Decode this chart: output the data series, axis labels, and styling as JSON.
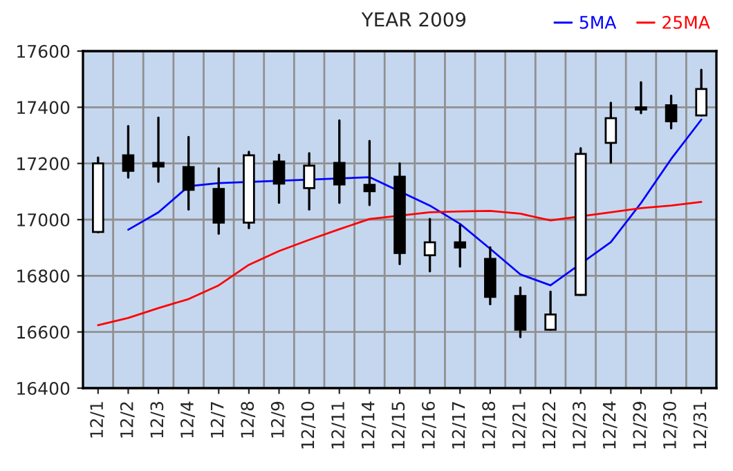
{
  "chart_data": {
    "type": "candlestick",
    "title": "YEAR 2009",
    "categories": [
      "12/1",
      "12/2",
      "12/3",
      "12/4",
      "12/7",
      "12/8",
      "12/9",
      "12/10",
      "12/11",
      "12/14",
      "12/15",
      "12/16",
      "12/17",
      "12/18",
      "12/21",
      "12/22",
      "12/23",
      "12/24",
      "12/29",
      "12/30",
      "12/31"
    ],
    "ohlc": [
      [
        16956,
        17221,
        16955,
        17200
      ],
      [
        17229,
        17333,
        17150,
        17174
      ],
      [
        17202,
        17363,
        17135,
        17189
      ],
      [
        17187,
        17294,
        17036,
        17106
      ],
      [
        17109,
        17182,
        16950,
        16989
      ],
      [
        16989,
        17241,
        16970,
        17229
      ],
      [
        17207,
        17231,
        17060,
        17128
      ],
      [
        17112,
        17236,
        17036,
        17192
      ],
      [
        17202,
        17353,
        17060,
        17125
      ],
      [
        17124,
        17280,
        17052,
        17101
      ],
      [
        17153,
        17200,
        16842,
        16881
      ],
      [
        16873,
        17002,
        16816,
        16919
      ],
      [
        16919,
        16980,
        16833,
        16901
      ],
      [
        16860,
        16901,
        16699,
        16725
      ],
      [
        16728,
        16758,
        16582,
        16608
      ],
      [
        16608,
        16743,
        16608,
        16662
      ],
      [
        16732,
        17254,
        16732,
        17234
      ],
      [
        17273,
        17416,
        17203,
        17361
      ],
      [
        17400,
        17489,
        17379,
        17392
      ],
      [
        17407,
        17441,
        17325,
        17350
      ],
      [
        17371,
        17533,
        17371,
        17465
      ]
    ],
    "series": [
      {
        "name": "5MA",
        "type": "line",
        "color": "#0000ff",
        "values": [
          null,
          16964,
          17026,
          17119,
          17130,
          null,
          null,
          null,
          null,
          17151,
          null,
          17050,
          16985,
          16896,
          16805,
          16766,
          null,
          16920,
          17059,
          17216,
          17356
        ]
      },
      {
        "name": "25MA",
        "type": "line",
        "color": "#ff0000",
        "values": [
          16624,
          16650,
          16685,
          16717,
          16766,
          16839,
          16888,
          16928,
          16966,
          17002,
          null,
          17026,
          17029,
          17031,
          17021,
          16997,
          null,
          17026,
          17041,
          17050,
          17063
        ]
      }
    ],
    "ylim": [
      16400,
      17600
    ],
    "yticks": [
      16400,
      16600,
      16800,
      17000,
      17200,
      17400,
      17600
    ],
    "grid": true,
    "legend": "top right"
  }
}
